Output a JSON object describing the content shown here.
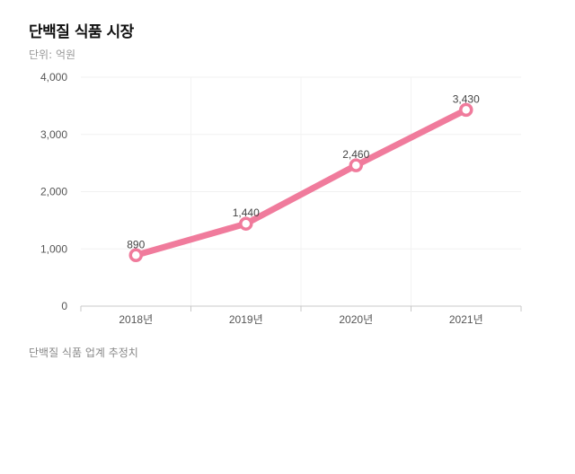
{
  "header": {
    "title": "단백질 식품 시장",
    "unit": "단위: 억원"
  },
  "footer": {
    "source": "단백질 식품 업계 추정치"
  },
  "chart_data": {
    "type": "line",
    "title": "단백질 식품 시장",
    "xlabel": "",
    "ylabel": "",
    "categories": [
      "2018년",
      "2019년",
      "2020년",
      "2021년"
    ],
    "values": [
      890,
      1440,
      2460,
      3430
    ],
    "data_labels": [
      "890",
      "1,440",
      "2,460",
      "3,430"
    ],
    "yticks": [
      "0",
      "1,000",
      "2,000",
      "3,000",
      "4,000"
    ],
    "ylim": [
      0,
      4000
    ],
    "grid": true,
    "line_color": "#f07b9c"
  }
}
